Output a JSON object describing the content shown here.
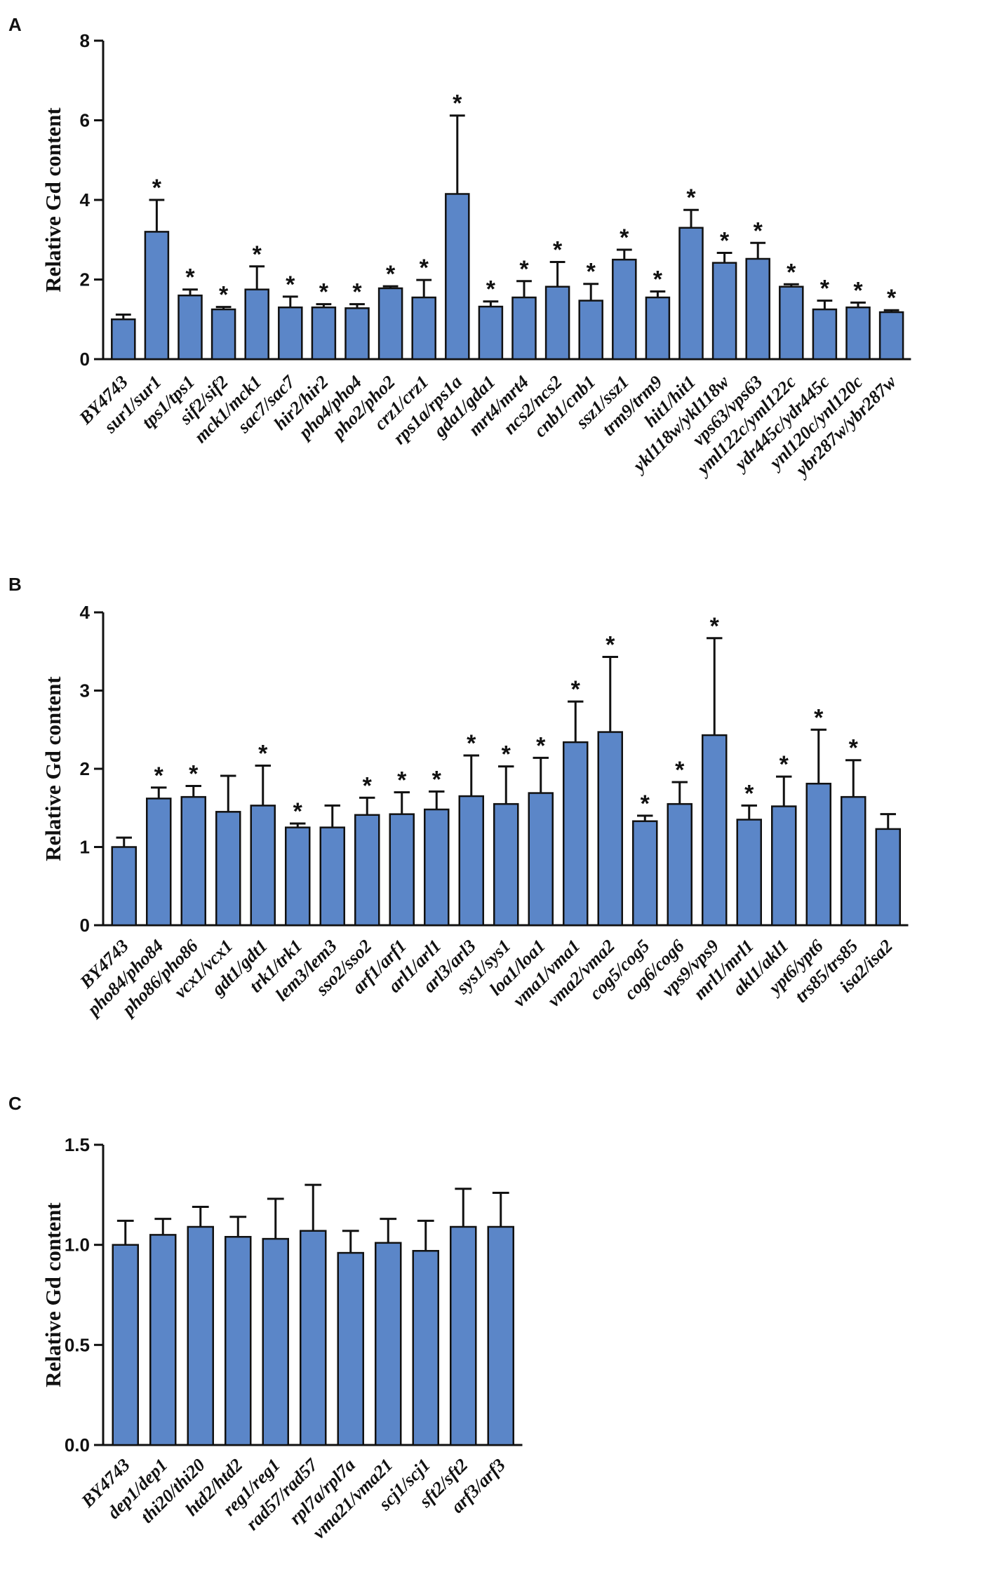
{
  "chart_data": [
    {
      "panel": "A",
      "type": "bar",
      "ylabel": "Relative Gd content",
      "xlabel": "",
      "ylim": [
        0,
        8
      ],
      "yticks": [
        "0",
        "2",
        "4",
        "6",
        "8"
      ],
      "bar_color": "#5b86c8",
      "categories": [
        "BY4743",
        "sur1/sur1",
        "tps1/tps1",
        "sif2/sif2",
        "mck1/mck1",
        "sac7/sac7",
        "hir2/hir2",
        "pho4/pho4",
        "pho2/pho2",
        "crz1/crz1",
        "rps1a/rps1a",
        "gda1/gda1",
        "mrt4/mrt4",
        "ncs2/ncs2",
        "cnb1/cnb1",
        "ssz1/ssz1",
        "trm9/trm9",
        "hit1/hit1",
        "ykl118w/ykl118w",
        "vps63/vps63",
        "yml122c/yml122c",
        "ydr445c/ydr445c",
        "ynl120c/ynl120c",
        "ybr287w/ybr287w"
      ],
      "values": [
        1.0,
        3.2,
        1.6,
        1.25,
        1.75,
        1.3,
        1.3,
        1.28,
        1.78,
        1.55,
        4.15,
        1.32,
        1.55,
        1.82,
        1.47,
        2.5,
        1.55,
        3.3,
        2.42,
        2.52,
        1.82,
        1.25,
        1.3,
        1.18
      ],
      "errors": [
        0.12,
        0.8,
        0.15,
        0.06,
        0.58,
        0.27,
        0.08,
        0.1,
        0.05,
        0.44,
        1.97,
        0.13,
        0.41,
        0.62,
        0.42,
        0.25,
        0.15,
        0.45,
        0.25,
        0.4,
        0.06,
        0.22,
        0.12,
        0.05
      ],
      "significant": [
        false,
        true,
        true,
        true,
        true,
        true,
        true,
        true,
        true,
        true,
        true,
        true,
        true,
        true,
        true,
        true,
        true,
        true,
        true,
        true,
        true,
        true,
        true,
        true
      ],
      "star_label": "*"
    },
    {
      "panel": "B",
      "type": "bar",
      "ylabel": "Relative Gd content",
      "xlabel": "",
      "ylim": [
        0,
        4
      ],
      "yticks": [
        "0",
        "1",
        "2",
        "3",
        "4"
      ],
      "bar_color": "#5b86c8",
      "categories": [
        "BY4743",
        "pho84/pho84",
        "pho86/pho86",
        "vcx1/vcx1",
        "gdt1/gdt1",
        "trk1/trk1",
        "lem3/lem3",
        "sso2/sso2",
        "arf1/arf1",
        "arl1/arl1",
        "arl3/arl3",
        "sys1/sys1",
        "loa1/loa1",
        "vma1/vma1",
        "vma2/vma2",
        "cog5/cog5",
        "cog6/cog6",
        "vps9/vps9",
        "mrl1/mrl1",
        "akl1/akl1",
        "ypt6/ypt6",
        "trs85/trs85",
        "isa2/isa2"
      ],
      "values": [
        1.0,
        1.62,
        1.64,
        1.45,
        1.53,
        1.25,
        1.25,
        1.41,
        1.42,
        1.48,
        1.65,
        1.55,
        1.69,
        2.34,
        2.47,
        1.33,
        1.55,
        2.43,
        1.35,
        1.52,
        1.81,
        1.64,
        1.23
      ],
      "errors": [
        0.12,
        0.14,
        0.14,
        0.46,
        0.51,
        0.05,
        0.28,
        0.22,
        0.28,
        0.23,
        0.52,
        0.48,
        0.45,
        0.52,
        0.96,
        0.07,
        0.28,
        1.24,
        0.18,
        0.38,
        0.69,
        0.47,
        0.19
      ],
      "significant": [
        false,
        true,
        true,
        false,
        true,
        true,
        false,
        true,
        true,
        true,
        true,
        true,
        true,
        true,
        true,
        true,
        true,
        true,
        true,
        true,
        true,
        true,
        false
      ],
      "star_label": "*"
    },
    {
      "panel": "C",
      "type": "bar",
      "ylabel": "Relative Gd content",
      "xlabel": "",
      "ylim": [
        0,
        1.5
      ],
      "yticks": [
        "0.0",
        "0.5",
        "1.0",
        "1.5"
      ],
      "bar_color": "#5b86c8",
      "categories": [
        "BY4743",
        "dep1/dep1",
        "thi20/thi20",
        "htd2/htd2",
        "reg1/reg1",
        "rad57/rad57",
        "rpl7a/rpl7a",
        "vma21/vma21",
        "scj1/scj1",
        "sft2/sft2",
        "arf3/arf3"
      ],
      "values": [
        1.0,
        1.05,
        1.09,
        1.04,
        1.03,
        1.07,
        0.96,
        1.01,
        0.97,
        1.09,
        1.09
      ],
      "errors": [
        0.12,
        0.08,
        0.1,
        0.1,
        0.2,
        0.23,
        0.11,
        0.12,
        0.15,
        0.19,
        0.17
      ],
      "significant": [
        false,
        false,
        false,
        false,
        false,
        false,
        false,
        false,
        false,
        false,
        false
      ],
      "star_label": "*"
    }
  ]
}
